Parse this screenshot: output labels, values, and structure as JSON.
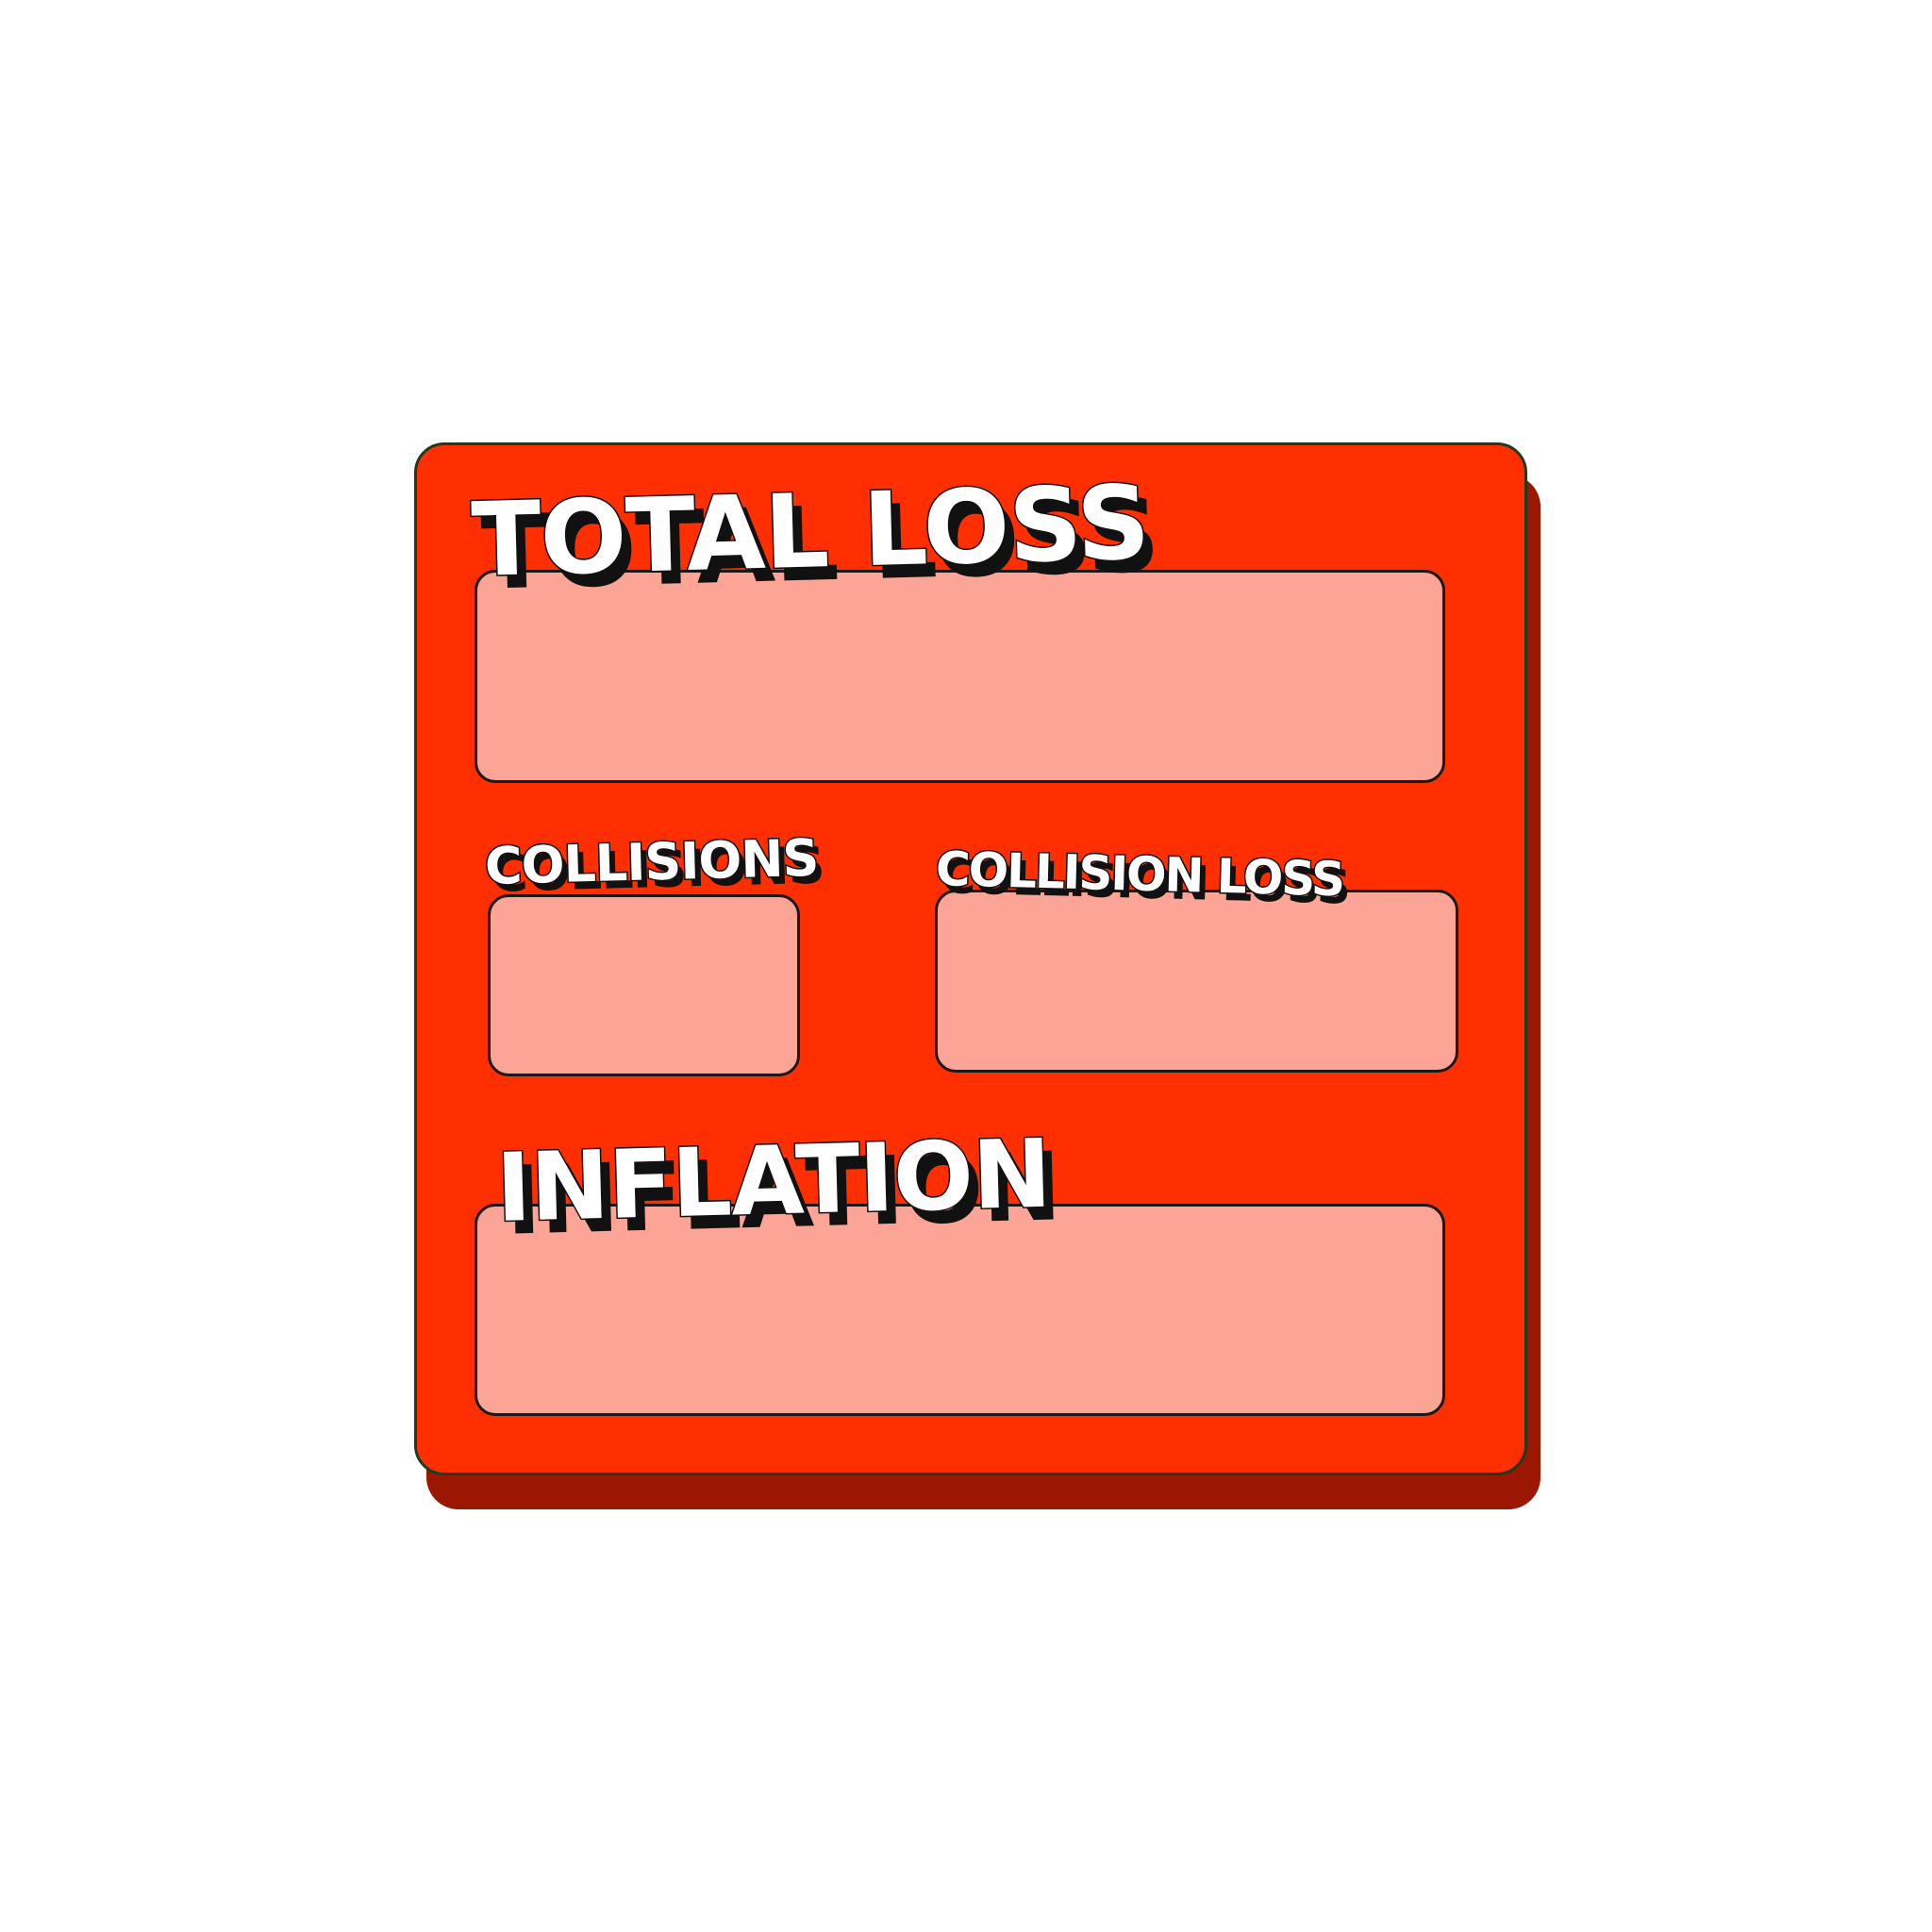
{
  "colors": {
    "panel": "#ff2f02",
    "panel_shadow": "#9c1702",
    "field_fill": "#fca596"
  },
  "panel": {
    "total_loss": {
      "label": "TOTAL LOSS",
      "value": ""
    },
    "collisions": {
      "label": "COLLISIONS",
      "value": ""
    },
    "collision_loss": {
      "label": "COLLISION LOSS",
      "value": ""
    },
    "inflation": {
      "label": "INFLATION",
      "value": ""
    }
  }
}
